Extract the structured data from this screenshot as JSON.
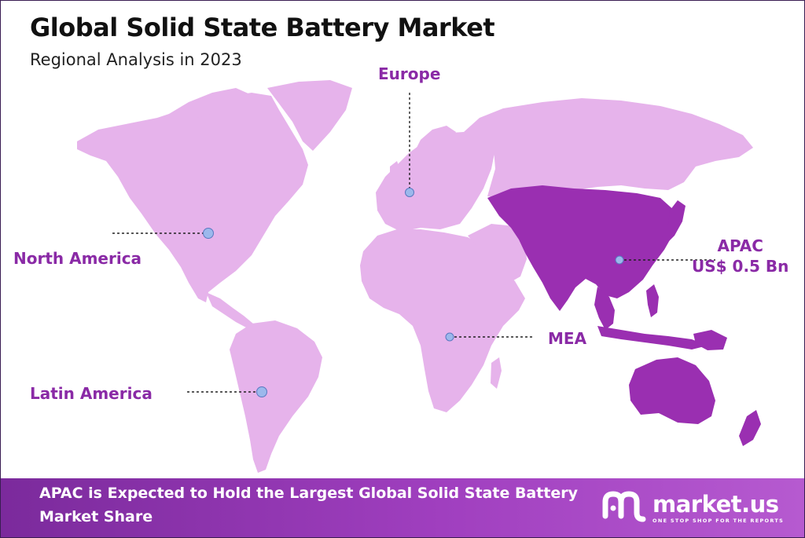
{
  "title": "Global Solid State Battery Market",
  "subtitle": "Regional Analysis in 2023",
  "colors": {
    "land": "#e6b3eb",
    "highlight": "#9a2fb1",
    "label": "#8a2aa6",
    "marker": "#9cb8ec",
    "banner": "#8e33ad"
  },
  "regions": {
    "europe": {
      "label": "Europe"
    },
    "north_america": {
      "label": "North America"
    },
    "apac": {
      "label": "APAC",
      "value": "US$ 0.5 Bn"
    },
    "mea": {
      "label": "MEA"
    },
    "latin_america": {
      "label": "Latin America"
    }
  },
  "highlighted_region": "APAC",
  "banner": {
    "text": "APAC is Expected to Hold the Largest Global Solid State Battery Market Share"
  },
  "brand": {
    "name": "market.us",
    "tagline": "ONE STOP SHOP FOR THE REPORTS",
    "logo_icon": "market-us-logo-icon"
  }
}
